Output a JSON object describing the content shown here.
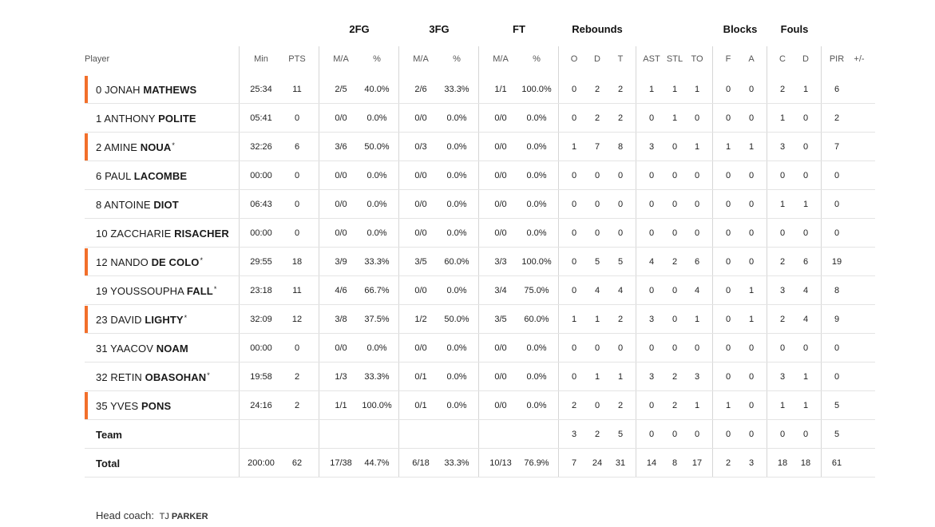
{
  "groups": {
    "fg2": "2FG",
    "fg3": "3FG",
    "ft": "FT",
    "rebounds": "Rebounds",
    "blocks": "Blocks",
    "fouls": "Fouls"
  },
  "columns": {
    "player": "Player",
    "min": "Min",
    "pts": "PTS",
    "fg2_ma": "M/A",
    "fg2_pct": "%",
    "fg3_ma": "M/A",
    "fg3_pct": "%",
    "ft_ma": "M/A",
    "ft_pct": "%",
    "reb_o": "O",
    "reb_d": "D",
    "reb_t": "T",
    "ast": "AST",
    "stl": "STL",
    "to": "TO",
    "blk_f": "F",
    "blk_a": "A",
    "foul_c": "C",
    "foul_d": "D",
    "pir": "PIR",
    "plusminus": "+/-"
  },
  "players": [
    {
      "number": "0",
      "first": "Jonah",
      "last": "Mathews",
      "mark": "",
      "starter": true,
      "stats": [
        "25:34",
        "11",
        "2/5",
        "40.0%",
        "2/6",
        "33.3%",
        "1/1",
        "100.0%",
        "0",
        "2",
        "2",
        "1",
        "1",
        "1",
        "0",
        "0",
        "2",
        "1",
        "6",
        ""
      ]
    },
    {
      "number": "1",
      "first": "Anthony",
      "last": "Polite",
      "mark": "",
      "starter": false,
      "stats": [
        "05:41",
        "0",
        "0/0",
        "0.0%",
        "0/0",
        "0.0%",
        "0/0",
        "0.0%",
        "0",
        "2",
        "2",
        "0",
        "1",
        "0",
        "0",
        "0",
        "1",
        "0",
        "2",
        ""
      ]
    },
    {
      "number": "2",
      "first": "Amine",
      "last": "Noua",
      "mark": "*",
      "starter": true,
      "stats": [
        "32:26",
        "6",
        "3/6",
        "50.0%",
        "0/3",
        "0.0%",
        "0/0",
        "0.0%",
        "1",
        "7",
        "8",
        "3",
        "0",
        "1",
        "1",
        "1",
        "3",
        "0",
        "7",
        ""
      ]
    },
    {
      "number": "6",
      "first": "Paul",
      "last": "Lacombe",
      "mark": "",
      "starter": false,
      "stats": [
        "00:00",
        "0",
        "0/0",
        "0.0%",
        "0/0",
        "0.0%",
        "0/0",
        "0.0%",
        "0",
        "0",
        "0",
        "0",
        "0",
        "0",
        "0",
        "0",
        "0",
        "0",
        "0",
        ""
      ]
    },
    {
      "number": "8",
      "first": "Antoine",
      "last": "Diot",
      "mark": "",
      "starter": false,
      "stats": [
        "06:43",
        "0",
        "0/0",
        "0.0%",
        "0/0",
        "0.0%",
        "0/0",
        "0.0%",
        "0",
        "0",
        "0",
        "0",
        "0",
        "0",
        "0",
        "0",
        "1",
        "1",
        "0",
        ""
      ]
    },
    {
      "number": "10",
      "first": "Zaccharie",
      "last": "Risacher",
      "mark": "",
      "starter": false,
      "stats": [
        "00:00",
        "0",
        "0/0",
        "0.0%",
        "0/0",
        "0.0%",
        "0/0",
        "0.0%",
        "0",
        "0",
        "0",
        "0",
        "0",
        "0",
        "0",
        "0",
        "0",
        "0",
        "0",
        ""
      ]
    },
    {
      "number": "12",
      "first": "Nando",
      "last": "De Colo",
      "mark": "*",
      "starter": true,
      "stats": [
        "29:55",
        "18",
        "3/9",
        "33.3%",
        "3/5",
        "60.0%",
        "3/3",
        "100.0%",
        "0",
        "5",
        "5",
        "4",
        "2",
        "6",
        "0",
        "0",
        "2",
        "6",
        "19",
        ""
      ]
    },
    {
      "number": "19",
      "first": "Youssoupha",
      "last": "Fall",
      "mark": "*",
      "starter": false,
      "stats": [
        "23:18",
        "11",
        "4/6",
        "66.7%",
        "0/0",
        "0.0%",
        "3/4",
        "75.0%",
        "0",
        "4",
        "4",
        "0",
        "0",
        "4",
        "0",
        "1",
        "3",
        "4",
        "8",
        ""
      ]
    },
    {
      "number": "23",
      "first": "David",
      "last": "Lighty",
      "mark": "*",
      "starter": true,
      "stats": [
        "32:09",
        "12",
        "3/8",
        "37.5%",
        "1/2",
        "50.0%",
        "3/5",
        "60.0%",
        "1",
        "1",
        "2",
        "3",
        "0",
        "1",
        "0",
        "1",
        "2",
        "4",
        "9",
        ""
      ]
    },
    {
      "number": "31",
      "first": "Yaacov",
      "last": "Noam",
      "mark": "",
      "starter": false,
      "stats": [
        "00:00",
        "0",
        "0/0",
        "0.0%",
        "0/0",
        "0.0%",
        "0/0",
        "0.0%",
        "0",
        "0",
        "0",
        "0",
        "0",
        "0",
        "0",
        "0",
        "0",
        "0",
        "0",
        ""
      ]
    },
    {
      "number": "32",
      "first": "Retin",
      "last": "Obasohan",
      "mark": "*",
      "starter": false,
      "stats": [
        "19:58",
        "2",
        "1/3",
        "33.3%",
        "0/1",
        "0.0%",
        "0/0",
        "0.0%",
        "0",
        "1",
        "1",
        "3",
        "2",
        "3",
        "0",
        "0",
        "3",
        "1",
        "0",
        ""
      ]
    },
    {
      "number": "35",
      "first": "Yves",
      "last": "Pons",
      "mark": "",
      "starter": true,
      "stats": [
        "24:16",
        "2",
        "1/1",
        "100.0%",
        "0/1",
        "0.0%",
        "0/0",
        "0.0%",
        "2",
        "0",
        "2",
        "0",
        "2",
        "1",
        "1",
        "0",
        "1",
        "1",
        "5",
        ""
      ]
    }
  ],
  "team_row": {
    "label": "Team",
    "stats": [
      "",
      "",
      "",
      "",
      "",
      "",
      "",
      "",
      "3",
      "2",
      "5",
      "0",
      "0",
      "0",
      "0",
      "0",
      "0",
      "0",
      "5",
      ""
    ]
  },
  "total_row": {
    "label": "Total",
    "stats": [
      "200:00",
      "62",
      "17/38",
      "44.7%",
      "6/18",
      "33.3%",
      "10/13",
      "76.9%",
      "7",
      "24",
      "31",
      "14",
      "8",
      "17",
      "2",
      "3",
      "18",
      "18",
      "61",
      ""
    ]
  },
  "coach": {
    "label": "Head coach:",
    "first": "TJ",
    "last": "PARKER"
  },
  "colors": {
    "starter_accent": "#f26f2b",
    "separator": "#e4e4e4",
    "divider": "#d6d6d6"
  }
}
